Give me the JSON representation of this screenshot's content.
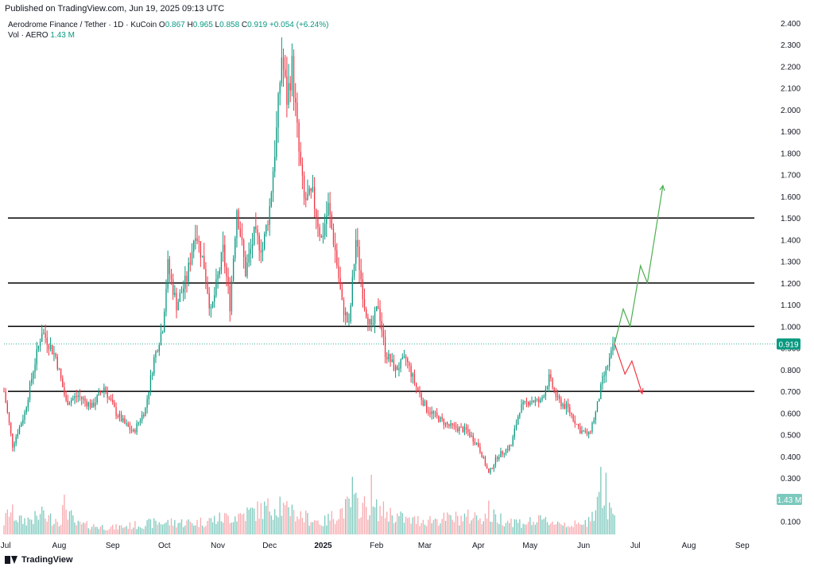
{
  "header": {
    "published": "Published on TradingView.com, Jun 19, 2025 09:13 UTC"
  },
  "legend": {
    "symbol": "Aerodrome Finance / Tether · 1D · KuCoin",
    "o_label": "O",
    "o": "0.867",
    "h_label": "H",
    "h": "0.965",
    "l_label": "L",
    "l": "0.858",
    "c_label": "C",
    "c": "0.919",
    "change": "+0.054 (+6.24%)",
    "vol_label": "Vol · AERO",
    "vol": "1.43 M"
  },
  "footer": {
    "brand": "TradingView"
  },
  "colors": {
    "up": "#089981",
    "down": "#f23645",
    "up_vol": "#7cc9bd",
    "down_vol": "#f7a9ae",
    "level": "#000000",
    "bull_path": "#4caf50",
    "bear_path": "#f23645"
  },
  "chart_data": {
    "type": "candlestick",
    "x_range": [
      "2024-06-30",
      "2025-09-20"
    ],
    "x_ticks": [
      {
        "date": "2024-07-01",
        "label": "Jul"
      },
      {
        "date": "2024-08-01",
        "label": "Aug"
      },
      {
        "date": "2024-09-01",
        "label": "Sep"
      },
      {
        "date": "2024-10-01",
        "label": "Oct"
      },
      {
        "date": "2024-11-01",
        "label": "Nov"
      },
      {
        "date": "2024-12-01",
        "label": "Dec"
      },
      {
        "date": "2025-01-01",
        "label": "2025",
        "bold": true
      },
      {
        "date": "2025-02-01",
        "label": "Feb"
      },
      {
        "date": "2025-03-01",
        "label": "Mar"
      },
      {
        "date": "2025-04-01",
        "label": "Apr"
      },
      {
        "date": "2025-05-01",
        "label": "May"
      },
      {
        "date": "2025-06-01",
        "label": "Jun"
      },
      {
        "date": "2025-07-01",
        "label": "Jul"
      },
      {
        "date": "2025-08-01",
        "label": "Aug"
      },
      {
        "date": "2025-09-01",
        "label": "Sep"
      }
    ],
    "ylim": [
      0.04,
      2.44
    ],
    "y_ticks": [
      "0.100",
      "0.200",
      "0.300",
      "0.400",
      "0.500",
      "0.600",
      "0.700",
      "0.800",
      "0.900",
      "1.000",
      "1.100",
      "1.200",
      "1.300",
      "1.400",
      "1.500",
      "1.600",
      "1.700",
      "1.800",
      "1.900",
      "2.000",
      "2.100",
      "2.200",
      "2.300",
      "2.400"
    ],
    "price_anchors": [
      {
        "date": "2024-06-30",
        "price": 0.7
      },
      {
        "date": "2024-07-05",
        "price": 0.45
      },
      {
        "date": "2024-07-12",
        "price": 0.6
      },
      {
        "date": "2024-07-17",
        "price": 0.8
      },
      {
        "date": "2024-07-22",
        "price": 0.98
      },
      {
        "date": "2024-07-30",
        "price": 0.86
      },
      {
        "date": "2024-08-05",
        "price": 0.65
      },
      {
        "date": "2024-08-12",
        "price": 0.68
      },
      {
        "date": "2024-08-20",
        "price": 0.63
      },
      {
        "date": "2024-08-27",
        "price": 0.72
      },
      {
        "date": "2024-09-03",
        "price": 0.6
      },
      {
        "date": "2024-09-08",
        "price": 0.55
      },
      {
        "date": "2024-09-13",
        "price": 0.51
      },
      {
        "date": "2024-09-20",
        "price": 0.62
      },
      {
        "date": "2024-09-25",
        "price": 0.85
      },
      {
        "date": "2024-09-30",
        "price": 1.0
      },
      {
        "date": "2024-10-03",
        "price": 1.28
      },
      {
        "date": "2024-10-08",
        "price": 1.1
      },
      {
        "date": "2024-10-14",
        "price": 1.22
      },
      {
        "date": "2024-10-19",
        "price": 1.45
      },
      {
        "date": "2024-10-24",
        "price": 1.28
      },
      {
        "date": "2024-10-28",
        "price": 1.06
      },
      {
        "date": "2024-11-04",
        "price": 1.35
      },
      {
        "date": "2024-11-08",
        "price": 1.1
      },
      {
        "date": "2024-11-12",
        "price": 1.55
      },
      {
        "date": "2024-11-17",
        "price": 1.25
      },
      {
        "date": "2024-11-22",
        "price": 1.42
      },
      {
        "date": "2024-11-27",
        "price": 1.36
      },
      {
        "date": "2024-12-01",
        "price": 1.55
      },
      {
        "date": "2024-12-05",
        "price": 1.9
      },
      {
        "date": "2024-12-08",
        "price": 2.25
      },
      {
        "date": "2024-12-11",
        "price": 2.05
      },
      {
        "date": "2024-12-14",
        "price": 2.2
      },
      {
        "date": "2024-12-18",
        "price": 1.8
      },
      {
        "date": "2024-12-21",
        "price": 1.58
      },
      {
        "date": "2024-12-26",
        "price": 1.6
      },
      {
        "date": "2024-12-31",
        "price": 1.4
      },
      {
        "date": "2025-01-04",
        "price": 1.55
      },
      {
        "date": "2025-01-08",
        "price": 1.35
      },
      {
        "date": "2025-01-12",
        "price": 1.1
      },
      {
        "date": "2025-01-16",
        "price": 1.0
      },
      {
        "date": "2025-01-20",
        "price": 1.4
      },
      {
        "date": "2025-01-25",
        "price": 1.1
      },
      {
        "date": "2025-01-29",
        "price": 0.98
      },
      {
        "date": "2025-02-02",
        "price": 1.1
      },
      {
        "date": "2025-02-06",
        "price": 0.88
      },
      {
        "date": "2025-02-12",
        "price": 0.8
      },
      {
        "date": "2025-02-18",
        "price": 0.85
      },
      {
        "date": "2025-02-24",
        "price": 0.72
      },
      {
        "date": "2025-03-02",
        "price": 0.62
      },
      {
        "date": "2025-03-08",
        "price": 0.58
      },
      {
        "date": "2025-03-15",
        "price": 0.54
      },
      {
        "date": "2025-03-25",
        "price": 0.52
      },
      {
        "date": "2025-04-01",
        "price": 0.45
      },
      {
        "date": "2025-04-07",
        "price": 0.32
      },
      {
        "date": "2025-04-12",
        "price": 0.4
      },
      {
        "date": "2025-04-20",
        "price": 0.45
      },
      {
        "date": "2025-04-25",
        "price": 0.62
      },
      {
        "date": "2025-05-01",
        "price": 0.66
      },
      {
        "date": "2025-05-07",
        "price": 0.65
      },
      {
        "date": "2025-05-12",
        "price": 0.76
      },
      {
        "date": "2025-05-17",
        "price": 0.66
      },
      {
        "date": "2025-05-23",
        "price": 0.62
      },
      {
        "date": "2025-05-30",
        "price": 0.52
      },
      {
        "date": "2025-06-04",
        "price": 0.5
      },
      {
        "date": "2025-06-08",
        "price": 0.6
      },
      {
        "date": "2025-06-12",
        "price": 0.75
      },
      {
        "date": "2025-06-15",
        "price": 0.82
      },
      {
        "date": "2025-06-19",
        "price": 0.919
      }
    ],
    "volume_anchors": [
      {
        "date": "2024-06-30",
        "vol": 0.35
      },
      {
        "date": "2024-07-03",
        "vol": 0.7
      },
      {
        "date": "2024-07-10",
        "vol": 0.4
      },
      {
        "date": "2024-07-20",
        "vol": 0.5
      },
      {
        "date": "2024-08-02",
        "vol": 0.45
      },
      {
        "date": "2024-08-04",
        "vol": 0.95
      },
      {
        "date": "2024-08-10",
        "vol": 0.3
      },
      {
        "date": "2024-09-01",
        "vol": 0.2
      },
      {
        "date": "2024-09-28",
        "vol": 0.35
      },
      {
        "date": "2024-10-20",
        "vol": 0.35
      },
      {
        "date": "2024-11-12",
        "vol": 0.55
      },
      {
        "date": "2024-12-06",
        "vol": 0.85
      },
      {
        "date": "2024-12-12",
        "vol": 0.65
      },
      {
        "date": "2025-01-01",
        "vol": 0.35
      },
      {
        "date": "2025-01-18",
        "vol": 0.9
      },
      {
        "date": "2025-02-04",
        "vol": 0.7
      },
      {
        "date": "2025-02-20",
        "vol": 0.4
      },
      {
        "date": "2025-03-10",
        "vol": 0.45
      },
      {
        "date": "2025-04-07",
        "vol": 0.55
      },
      {
        "date": "2025-04-25",
        "vol": 0.35
      },
      {
        "date": "2025-05-10",
        "vol": 0.4
      },
      {
        "date": "2025-06-01",
        "vol": 0.25
      },
      {
        "date": "2025-06-10",
        "vol": 1.0
      },
      {
        "date": "2025-06-19",
        "vol": 0.55
      }
    ],
    "volume_spikes": [
      {
        "date": "2024-07-22",
        "vol": 0.7
      },
      {
        "date": "2024-08-04",
        "vol": 1.0
      },
      {
        "date": "2024-12-07",
        "vol": 0.95
      },
      {
        "date": "2024-12-14",
        "vol": 0.75
      },
      {
        "date": "2025-01-18",
        "vol": 1.45
      },
      {
        "date": "2025-01-29",
        "vol": 1.5
      },
      {
        "date": "2025-04-07",
        "vol": 0.85
      },
      {
        "date": "2025-06-11",
        "vol": 1.7
      },
      {
        "date": "2025-06-14",
        "vol": 1.55
      }
    ],
    "horizontal_levels": [
      0.7,
      1.0,
      1.2,
      1.5
    ],
    "current_price": {
      "value": 0.919,
      "label": "0.919"
    },
    "current_volume": {
      "label": "1.43 M"
    },
    "bull_projection": [
      {
        "date": "2025-06-19",
        "price": 0.92
      },
      {
        "date": "2025-06-24",
        "price": 1.08
      },
      {
        "date": "2025-06-28",
        "price": 1.0
      },
      {
        "date": "2025-07-04",
        "price": 1.28
      },
      {
        "date": "2025-07-08",
        "price": 1.2
      },
      {
        "date": "2025-07-17",
        "price": 1.65
      }
    ],
    "bear_projection": [
      {
        "date": "2025-06-19",
        "price": 0.92
      },
      {
        "date": "2025-06-25",
        "price": 0.78
      },
      {
        "date": "2025-06-29",
        "price": 0.84
      },
      {
        "date": "2025-07-05",
        "price": 0.69
      }
    ]
  }
}
